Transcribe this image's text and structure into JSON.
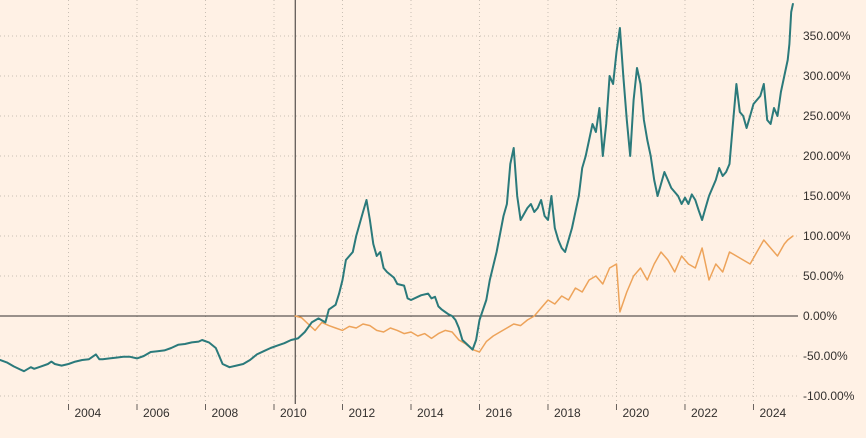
{
  "chart_data": {
    "type": "line",
    "title": "",
    "xlabel": "",
    "ylabel": "",
    "xlim": [
      2002.0,
      2025.3
    ],
    "ylim": [
      -110,
      395
    ],
    "grid": true,
    "marker_x": 2010.62,
    "y_ticks": [
      {
        "value": 350,
        "label": "350.00%"
      },
      {
        "value": 300,
        "label": "300.00%"
      },
      {
        "value": 250,
        "label": "250.00%"
      },
      {
        "value": 200,
        "label": "200.00%"
      },
      {
        "value": 150,
        "label": "150.00%"
      },
      {
        "value": 100,
        "label": "100.00%"
      },
      {
        "value": 50,
        "label": "50.00%"
      },
      {
        "value": 0,
        "label": "0.00%"
      },
      {
        "value": -50,
        "label": "-50.00%"
      },
      {
        "value": -100,
        "label": "-100.00%"
      }
    ],
    "x_ticks": [
      {
        "value": 2004,
        "label": "2004"
      },
      {
        "value": 2006,
        "label": "2006"
      },
      {
        "value": 2008,
        "label": "2008"
      },
      {
        "value": 2010,
        "label": "2010"
      },
      {
        "value": 2012,
        "label": "2012"
      },
      {
        "value": 2014,
        "label": "2014"
      },
      {
        "value": 2016,
        "label": "2016"
      },
      {
        "value": 2018,
        "label": "2018"
      },
      {
        "value": 2020,
        "label": "2020"
      },
      {
        "value": 2022,
        "label": "2022"
      },
      {
        "value": 2024,
        "label": "2024"
      }
    ],
    "series": [
      {
        "color": "#2b7a7b",
        "x": [
          2002.0,
          2002.2,
          2002.4,
          2002.6,
          2002.7,
          2002.9,
          2003.0,
          2003.2,
          2003.4,
          2003.5,
          2003.6,
          2003.8,
          2004.0,
          2004.2,
          2004.4,
          2004.6,
          2004.8,
          2004.9,
          2005.0,
          2005.2,
          2005.4,
          2005.6,
          2005.8,
          2006.0,
          2006.2,
          2006.4,
          2006.6,
          2006.8,
          2007.0,
          2007.2,
          2007.4,
          2007.6,
          2007.8,
          2007.9,
          2008.1,
          2008.3,
          2008.5,
          2008.7,
          2008.9,
          2009.1,
          2009.3,
          2009.5,
          2009.7,
          2009.9,
          2010.1,
          2010.3,
          2010.5,
          2010.7,
          2010.9,
          2011.1,
          2011.3,
          2011.5,
          2011.6,
          2011.8,
          2011.9,
          2012.0,
          2012.1,
          2012.3,
          2012.4,
          2012.5,
          2012.6,
          2012.7,
          2012.8,
          2012.9,
          2013.0,
          2013.1,
          2013.2,
          2013.3,
          2013.5,
          2013.6,
          2013.8,
          2013.9,
          2014.0,
          2014.2,
          2014.3,
          2014.5,
          2014.6,
          2014.7,
          2014.8,
          2014.9,
          2015.0,
          2015.1,
          2015.2,
          2015.3,
          2015.4,
          2015.5,
          2015.7,
          2015.8,
          2015.9,
          2016.0,
          2016.2,
          2016.3,
          2016.5,
          2016.7,
          2016.8,
          2016.9,
          2017.0,
          2017.1,
          2017.2,
          2017.4,
          2017.5,
          2017.6,
          2017.7,
          2017.8,
          2017.9,
          2018.0,
          2018.1,
          2018.2,
          2018.3,
          2018.4,
          2018.5,
          2018.7,
          2018.8,
          2018.9,
          2019.0,
          2019.1,
          2019.2,
          2019.3,
          2019.4,
          2019.5,
          2019.6,
          2019.7,
          2019.8,
          2019.9,
          2020.0,
          2020.1,
          2020.2,
          2020.3,
          2020.4,
          2020.5,
          2020.6,
          2020.7,
          2020.8,
          2020.9,
          2021.0,
          2021.1,
          2021.2,
          2021.4,
          2021.5,
          2021.6,
          2021.7,
          2021.8,
          2021.9,
          2022.0,
          2022.1,
          2022.2,
          2022.3,
          2022.4,
          2022.5,
          2022.6,
          2022.7,
          2022.8,
          2022.9,
          2023.0,
          2023.1,
          2023.2,
          2023.3,
          2023.4,
          2023.5,
          2023.6,
          2023.7,
          2023.8,
          2023.9,
          2024.0,
          2024.1,
          2024.2,
          2024.3,
          2024.4,
          2024.5,
          2024.6,
          2024.7,
          2024.8,
          2024.9,
          2025.0,
          2025.05,
          2025.1,
          2025.15
        ],
        "y": [
          -55,
          -58,
          -63,
          -67,
          -69,
          -64,
          -66,
          -63,
          -60,
          -57,
          -60,
          -62,
          -60,
          -57,
          -55,
          -54,
          -48,
          -54,
          -54,
          -53,
          -52,
          -51,
          -51,
          -53,
          -50,
          -45,
          -44,
          -43,
          -40,
          -36,
          -35,
          -33,
          -32,
          -30,
          -33,
          -40,
          -60,
          -64,
          -62,
          -60,
          -55,
          -48,
          -44,
          -40,
          -37,
          -34,
          -30,
          -28,
          -20,
          -8,
          -3,
          -8,
          8,
          14,
          28,
          45,
          70,
          80,
          100,
          115,
          130,
          145,
          120,
          90,
          75,
          80,
          60,
          55,
          48,
          40,
          38,
          22,
          20,
          24,
          26,
          28,
          22,
          24,
          12,
          8,
          5,
          2,
          0,
          -5,
          -15,
          -30,
          -38,
          -42,
          -30,
          -5,
          20,
          45,
          80,
          125,
          140,
          190,
          210,
          150,
          120,
          135,
          140,
          130,
          135,
          145,
          125,
          120,
          150,
          110,
          95,
          85,
          80,
          110,
          130,
          150,
          185,
          200,
          220,
          240,
          230,
          260,
          200,
          240,
          300,
          290,
          330,
          360,
          300,
          245,
          200,
          270,
          310,
          290,
          245,
          220,
          200,
          170,
          150,
          180,
          170,
          160,
          155,
          150,
          140,
          148,
          140,
          152,
          145,
          132,
          120,
          135,
          150,
          160,
          170,
          185,
          175,
          180,
          190,
          240,
          290,
          255,
          250,
          235,
          250,
          265,
          270,
          275,
          290,
          245,
          240,
          260,
          250,
          280,
          300,
          320,
          340,
          380,
          390
        ]
      },
      {
        "color": "#eda35a",
        "x": [
          2010.62,
          2010.8,
          2011.0,
          2011.2,
          2011.4,
          2011.6,
          2011.8,
          2012.0,
          2012.2,
          2012.4,
          2012.6,
          2012.8,
          2013.0,
          2013.2,
          2013.4,
          2013.6,
          2013.8,
          2014.0,
          2014.2,
          2014.4,
          2014.6,
          2014.8,
          2015.0,
          2015.2,
          2015.4,
          2015.6,
          2015.8,
          2016.0,
          2016.2,
          2016.4,
          2016.6,
          2016.8,
          2017.0,
          2017.2,
          2017.4,
          2017.6,
          2017.8,
          2018.0,
          2018.2,
          2018.4,
          2018.6,
          2018.8,
          2019.0,
          2019.2,
          2019.4,
          2019.6,
          2019.8,
          2020.0,
          2020.1,
          2020.3,
          2020.5,
          2020.7,
          2020.9,
          2021.1,
          2021.3,
          2021.5,
          2021.7,
          2021.9,
          2022.1,
          2022.3,
          2022.5,
          2022.7,
          2022.9,
          2023.1,
          2023.3,
          2023.5,
          2023.7,
          2023.9,
          2024.1,
          2024.3,
          2024.5,
          2024.7,
          2024.9,
          2025.0,
          2025.15
        ],
        "y": [
          0,
          -2,
          -10,
          -18,
          -8,
          -12,
          -15,
          -18,
          -13,
          -15,
          -10,
          -12,
          -18,
          -20,
          -15,
          -18,
          -22,
          -20,
          -25,
          -22,
          -28,
          -22,
          -18,
          -20,
          -30,
          -35,
          -42,
          -45,
          -32,
          -25,
          -20,
          -15,
          -10,
          -12,
          -5,
          0,
          10,
          20,
          15,
          25,
          20,
          35,
          30,
          45,
          50,
          40,
          60,
          65,
          5,
          30,
          50,
          60,
          45,
          65,
          80,
          70,
          55,
          75,
          65,
          60,
          85,
          45,
          65,
          55,
          80,
          75,
          70,
          65,
          80,
          95,
          85,
          75,
          90,
          95,
          100
        ]
      }
    ]
  }
}
